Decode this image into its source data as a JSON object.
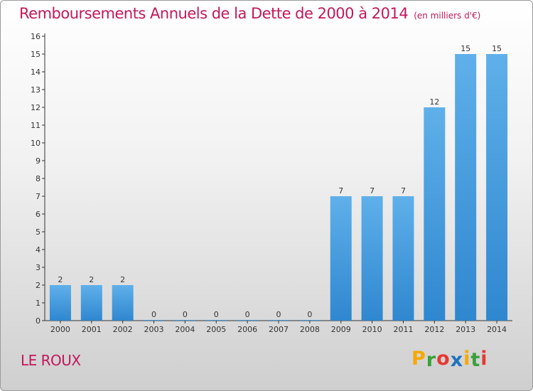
{
  "chart_data": {
    "type": "bar",
    "title": "Remboursements Annuels de la Dette de 2000 à 2014",
    "unit": "(en milliers d'€)",
    "categories": [
      "2000",
      "2001",
      "2002",
      "2003",
      "2004",
      "2005",
      "2006",
      "2007",
      "2008",
      "2009",
      "2010",
      "2011",
      "2012",
      "2013",
      "2014"
    ],
    "values": [
      2,
      2,
      2,
      0,
      0,
      0,
      0,
      0,
      0,
      7,
      7,
      7,
      12,
      15,
      15
    ],
    "ylim": [
      0,
      16
    ],
    "yticks": [
      0,
      1,
      2,
      3,
      4,
      5,
      6,
      7,
      8,
      9,
      10,
      11,
      12,
      13,
      14,
      15,
      16
    ],
    "grid": false,
    "bar_color": "#2f87cf"
  },
  "footer": {
    "commune": "LE ROUX",
    "logo_letters": [
      "P",
      "r",
      "o",
      "x",
      "i",
      "t",
      "i"
    ],
    "logo_colors": [
      "#f7a800",
      "#3aa03a",
      "#e53935",
      "#1e73be",
      "#f7a800",
      "#3aa03a",
      "#e53935"
    ]
  },
  "colors": {
    "title": "#c2185b",
    "axis": "#333333"
  }
}
